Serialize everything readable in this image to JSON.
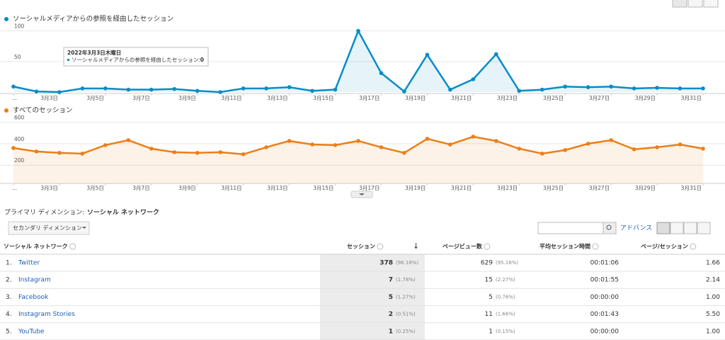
{
  "chart_data": [
    {
      "type": "line",
      "categories": [
        "...",
        null,
        "3月3日",
        null,
        "3月5日",
        null,
        "3月7日",
        null,
        "3月9日",
        null,
        "3月11日",
        null,
        "3月13日",
        null,
        "3月15日",
        null,
        "3月17日",
        null,
        "3月19日",
        null,
        "3月21日",
        null,
        "3月23日",
        null,
        "3月25日",
        null,
        "3月27日",
        null,
        "3月29日",
        null,
        "3月31日"
      ],
      "series": [
        {
          "name": "ソーシャルメディアからの参照を経由したセッション",
          "color": "#058dc7",
          "values": [
            9,
            1,
            0,
            6,
            6,
            4,
            4,
            5,
            2,
            0,
            6,
            6,
            8,
            2,
            4,
            100,
            31,
            1,
            61,
            4,
            21,
            62,
            2,
            4,
            9,
            8,
            9,
            6,
            7,
            6,
            6
          ]
        }
      ],
      "ylim": [
        0,
        110
      ],
      "yticks": [
        50,
        100
      ],
      "grid": true,
      "tooltip": {
        "date": "2022年3月3日木曜日",
        "series_label": "ソーシャルメディアからの参照を経由したセッション:",
        "value": 0
      }
    },
    {
      "type": "line",
      "categories": [
        "...",
        null,
        "3月3日",
        null,
        "3月5日",
        null,
        "3月7日",
        null,
        "3月9日",
        null,
        "3月11日",
        null,
        "3月13日",
        null,
        "3月15日",
        null,
        "3月17日",
        null,
        "3月19日",
        null,
        "3月21日",
        null,
        "3月23日",
        null,
        "3月25日",
        null,
        "3月27日",
        null,
        "3月29日",
        null,
        "3月31日"
      ],
      "series": [
        {
          "name": "すべてのセッション",
          "color": "#ed7e17",
          "values": [
            360,
            328,
            315,
            308,
            387,
            433,
            354,
            321,
            315,
            321,
            302,
            367,
            426,
            393,
            387,
            426,
            367,
            315,
            446,
            393,
            466,
            426,
            354,
            308,
            341,
            400,
            433,
            348,
            367,
            393,
            354
          ]
        }
      ],
      "ylim": [
        30,
        650
      ],
      "yticks": [
        200,
        400,
        600
      ],
      "grid": true
    }
  ],
  "table": {
    "primary_label": "プライマリ ディメンション:",
    "primary_value": "ソーシャル ネットワーク",
    "secondary": "セカンダリ ディメンション",
    "advanced": "アドバンス",
    "columns": [
      "ソーシャル ネットワーク",
      "セッション",
      "ページビュー数",
      "平均セッション時間",
      "ページ/セッション"
    ],
    "rows": [
      [
        "1.",
        "Twitter",
        378,
        "(96.18%)",
        629,
        "(95.16%)",
        "00:01:06",
        1.66
      ],
      [
        "2.",
        "Instagram",
        7,
        "(1.78%)",
        15,
        "(2.27%)",
        "00:01:55",
        2.14
      ],
      [
        "3.",
        "Facebook",
        5,
        "(1.27%)",
        5,
        "(0.76%)",
        "00:00:00",
        {
          "value": 1,
          "label": "1.00"
        }
      ],
      [
        "4.",
        "Instagram Stories",
        2,
        "(0.51%)",
        11,
        "(1.66%)",
        "00:01:43",
        {
          "value": 5.5,
          "label": "5.50"
        }
      ],
      [
        "5.",
        "YouTube",
        1,
        "(0.25%)",
        1,
        "(0.15%)",
        "00:00:00",
        {
          "value": 1,
          "label": "1.00"
        }
      ]
    ]
  }
}
